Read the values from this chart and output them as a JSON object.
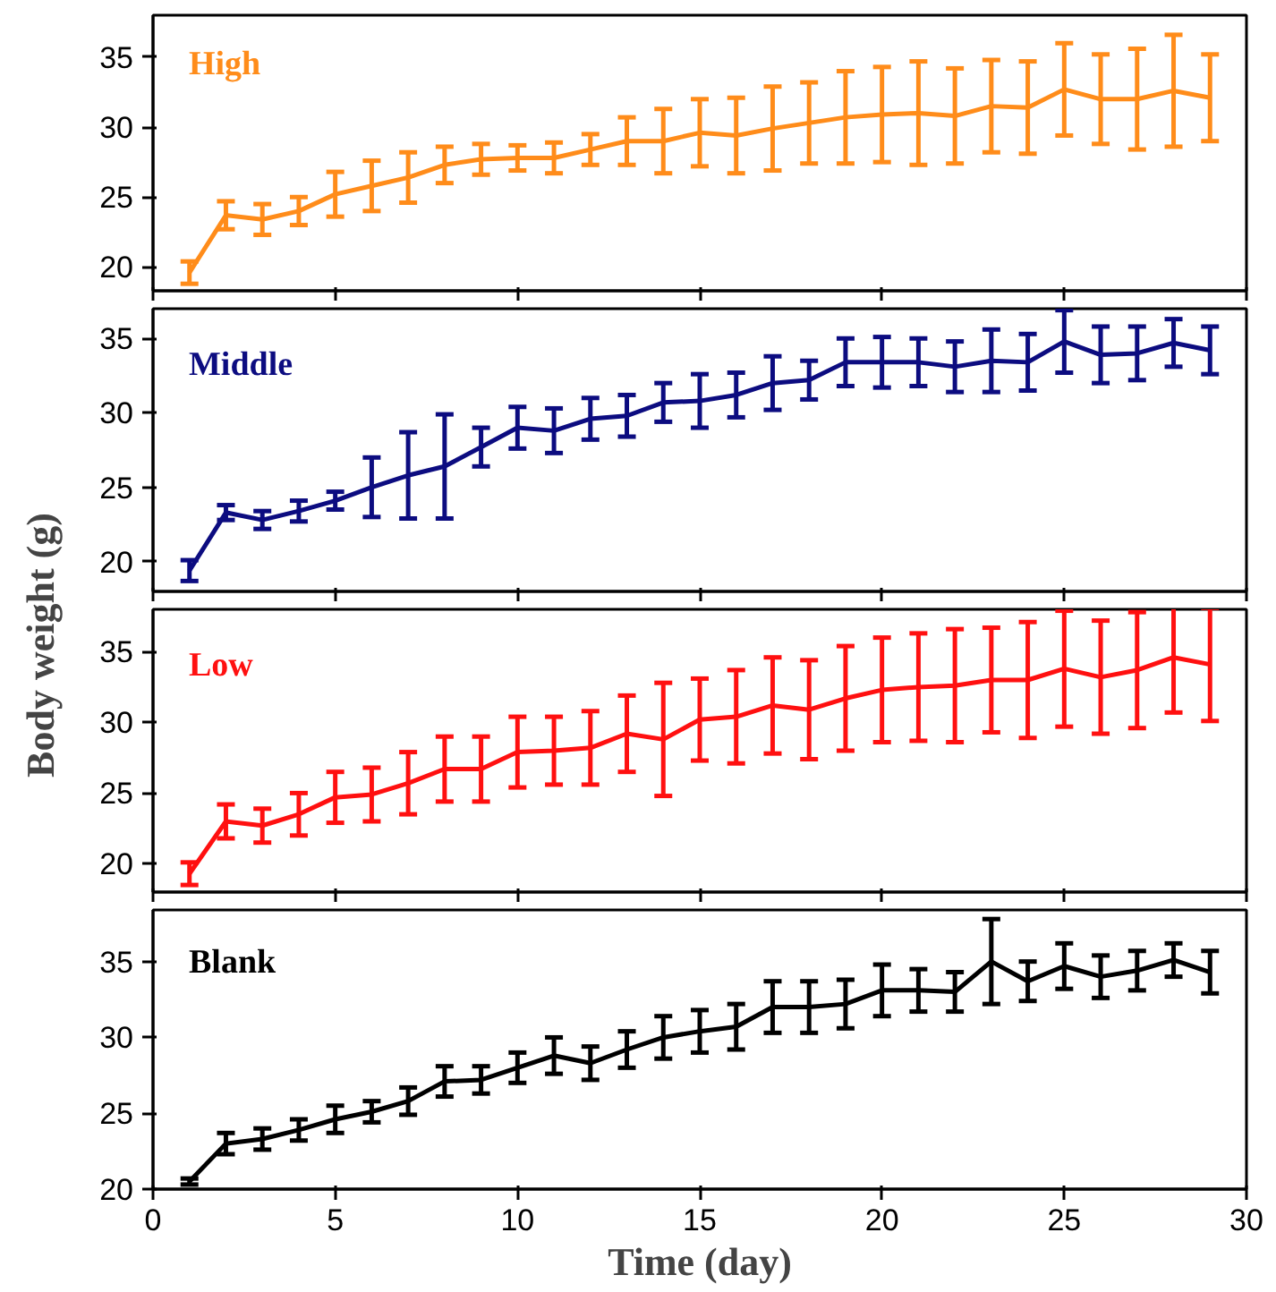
{
  "chart_data": [
    {
      "type": "line",
      "tick_labels": "y",
      "grid": false,
      "marker": "none",
      "xlim": [
        0,
        30
      ],
      "xticks": [
        0,
        5,
        10,
        15,
        20,
        25,
        30
      ],
      "ylim": [
        18.3,
        38
      ],
      "yticks": [
        20,
        25,
        30,
        35
      ],
      "x": [
        1,
        2,
        3,
        4,
        5,
        6,
        7,
        8,
        9,
        10,
        11,
        12,
        13,
        14,
        15,
        16,
        17,
        18,
        19,
        20,
        21,
        22,
        23,
        24,
        25,
        26,
        27,
        28,
        29
      ],
      "series": [
        {
          "name": "High",
          "color": "#ff8c1a",
          "values": [
            19.6,
            23.7,
            23.4,
            24.0,
            25.2,
            25.8,
            26.4,
            27.3,
            27.7,
            27.8,
            27.8,
            28.4,
            29.0,
            29.0,
            29.6,
            29.4,
            29.9,
            30.3,
            30.7,
            30.9,
            31.0,
            30.8,
            31.5,
            31.4,
            32.7,
            32.0,
            32.0,
            32.6,
            32.1
          ],
          "errors": [
            0.8,
            1.0,
            1.1,
            1.0,
            1.6,
            1.8,
            1.8,
            1.3,
            1.1,
            0.9,
            1.1,
            1.1,
            1.7,
            2.3,
            2.4,
            2.7,
            3.0,
            2.9,
            3.3,
            3.4,
            3.7,
            3.4,
            3.3,
            3.3,
            3.3,
            3.2,
            3.6,
            4.0,
            3.1
          ]
        }
      ]
    },
    {
      "type": "line",
      "tick_labels": "y",
      "grid": false,
      "marker": "none",
      "xlim": [
        0,
        30
      ],
      "xticks": [
        0,
        5,
        10,
        15,
        20,
        25,
        30
      ],
      "ylim": [
        18,
        37
      ],
      "yticks": [
        20,
        25,
        30,
        35
      ],
      "x": [
        1,
        2,
        3,
        4,
        5,
        6,
        7,
        8,
        9,
        10,
        11,
        12,
        13,
        14,
        15,
        16,
        17,
        18,
        19,
        20,
        21,
        22,
        23,
        24,
        25,
        26,
        27,
        28,
        29
      ],
      "series": [
        {
          "name": "Middle",
          "color": "#0c0c80",
          "values": [
            19.4,
            23.3,
            22.8,
            23.4,
            24.1,
            25.0,
            25.8,
            26.4,
            27.7,
            29.0,
            28.8,
            29.6,
            29.8,
            30.7,
            30.8,
            31.2,
            32.0,
            32.2,
            33.4,
            33.4,
            33.4,
            33.1,
            33.5,
            33.4,
            34.8,
            33.9,
            34.0,
            34.7,
            34.2
          ],
          "errors": [
            0.7,
            0.5,
            0.6,
            0.7,
            0.6,
            2.0,
            2.9,
            3.5,
            1.3,
            1.4,
            1.5,
            1.4,
            1.4,
            1.3,
            1.8,
            1.5,
            1.8,
            1.3,
            1.6,
            1.7,
            1.6,
            1.7,
            2.1,
            1.9,
            2.1,
            1.9,
            1.8,
            1.6,
            1.6
          ]
        }
      ]
    },
    {
      "type": "line",
      "tick_labels": "y",
      "grid": false,
      "marker": "none",
      "xlim": [
        0,
        30
      ],
      "xticks": [
        0,
        5,
        10,
        15,
        20,
        25,
        30
      ],
      "ylim": [
        18,
        38
      ],
      "yticks": [
        20,
        25,
        30,
        35
      ],
      "x": [
        1,
        2,
        3,
        4,
        5,
        6,
        7,
        8,
        9,
        10,
        11,
        12,
        13,
        14,
        15,
        16,
        17,
        18,
        19,
        20,
        21,
        22,
        23,
        24,
        25,
        26,
        27,
        28,
        29
      ],
      "series": [
        {
          "name": "Low",
          "color": "#ff1010",
          "values": [
            19.3,
            23.0,
            22.7,
            23.5,
            24.7,
            24.9,
            25.7,
            26.7,
            26.7,
            27.9,
            28.0,
            28.2,
            29.2,
            28.8,
            30.2,
            30.4,
            31.2,
            30.9,
            31.7,
            32.3,
            32.5,
            32.6,
            33.0,
            33.0,
            33.8,
            33.2,
            33.7,
            34.6,
            34.1
          ],
          "errors": [
            0.8,
            1.2,
            1.2,
            1.5,
            1.8,
            1.9,
            2.2,
            2.3,
            2.3,
            2.5,
            2.4,
            2.6,
            2.7,
            4.0,
            2.9,
            3.3,
            3.4,
            3.5,
            3.7,
            3.7,
            3.8,
            4.0,
            3.7,
            4.1,
            4.1,
            4.0,
            4.1,
            3.9,
            4.0
          ]
        }
      ]
    },
    {
      "type": "line",
      "grid": false,
      "marker": "none",
      "xlabel": "Time (day)",
      "ylabel": "Body weight (g)",
      "xlim": [
        0,
        30
      ],
      "xticks": [
        0,
        5,
        10,
        15,
        20,
        25,
        30
      ],
      "ylim": [
        20,
        38.4
      ],
      "yticks": [
        20,
        25,
        30,
        35
      ],
      "x": [
        1,
        2,
        3,
        4,
        5,
        6,
        7,
        8,
        9,
        10,
        11,
        12,
        13,
        14,
        15,
        16,
        17,
        18,
        19,
        20,
        21,
        22,
        23,
        24,
        25,
        26,
        27,
        28,
        29
      ],
      "series": [
        {
          "name": "Blank",
          "color": "#000000",
          "values": [
            20.5,
            23.0,
            23.3,
            23.9,
            24.6,
            25.1,
            25.8,
            27.1,
            27.2,
            28.0,
            28.8,
            28.3,
            29.2,
            30.0,
            30.4,
            30.7,
            32.0,
            32.0,
            32.2,
            33.1,
            33.1,
            33.0,
            35.0,
            33.7,
            34.7,
            34.0,
            34.4,
            35.1,
            34.3
          ],
          "errors": [
            0.2,
            0.7,
            0.7,
            0.7,
            0.9,
            0.7,
            0.9,
            1.0,
            0.9,
            1.0,
            1.2,
            1.1,
            1.2,
            1.4,
            1.4,
            1.5,
            1.7,
            1.7,
            1.6,
            1.7,
            1.4,
            1.3,
            2.8,
            1.3,
            1.5,
            1.4,
            1.3,
            1.1,
            1.4
          ]
        }
      ]
    }
  ]
}
